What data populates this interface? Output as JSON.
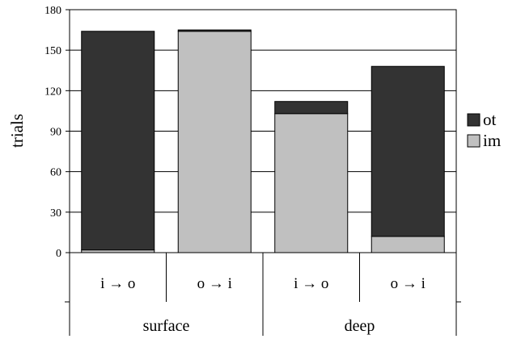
{
  "chart_data": {
    "type": "bar",
    "stacked": true,
    "ylabel": "trials",
    "ylim": [
      0,
      180
    ],
    "yticks": [
      0,
      30,
      60,
      90,
      120,
      150,
      180
    ],
    "grid": true,
    "legend_position": "right",
    "categories": [
      "i → o",
      "o → i",
      "i → o",
      "o → i"
    ],
    "groups": [
      {
        "label": "surface",
        "categories": [
          0,
          1
        ]
      },
      {
        "label": "deep",
        "categories": [
          2,
          3
        ]
      }
    ],
    "series": [
      {
        "name": "im",
        "color": "#c0c0c0",
        "values": [
          2,
          164,
          103,
          12
        ]
      },
      {
        "name": "ot",
        "color": "#333333",
        "values": [
          162,
          1,
          9,
          126
        ]
      }
    ],
    "legend_order": [
      "ot",
      "im"
    ]
  }
}
